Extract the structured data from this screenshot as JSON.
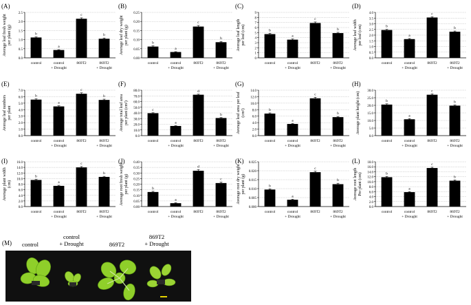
{
  "chart_data": [
    {
      "panel": "(A)",
      "type": "bar",
      "ylabel": [
        "Average leaf fresh weight",
        "per plant (g)"
      ],
      "ylim": [
        0,
        2.5
      ],
      "ticks": [
        "0.0",
        "0.5",
        "1.0",
        "1.5",
        "2.0",
        "2.5"
      ],
      "categories": [
        [
          "control"
        ],
        [
          "control",
          "+ Drought"
        ],
        [
          "869T2"
        ],
        [
          "869T2",
          "+ Drought"
        ]
      ],
      "values": [
        1.12,
        0.43,
        2.15,
        1.05
      ],
      "errors": [
        0.03,
        0.02,
        0.05,
        0.04
      ],
      "letters": [
        "b",
        "a",
        "c",
        "b"
      ]
    },
    {
      "panel": "(B)",
      "type": "bar",
      "ylabel": [
        "Average leaf dry weight",
        "per plant (g)"
      ],
      "ylim": [
        0,
        0.25
      ],
      "ticks": [
        "0.00",
        "0.05",
        "0.10",
        "0.15",
        "0.20",
        "0.25"
      ],
      "categories": [
        [
          "control"
        ],
        [
          "control",
          "+ Drought"
        ],
        [
          "869T2"
        ],
        [
          "869T2",
          "+ Drought"
        ]
      ],
      "values": [
        0.062,
        0.032,
        0.172,
        0.086
      ],
      "errors": [
        0.004,
        0.002,
        0.006,
        0.004
      ],
      "letters": [
        "b",
        "a",
        "c",
        "b"
      ]
    },
    {
      "panel": "(C)",
      "type": "bar",
      "ylabel": [
        "Average leaf length",
        "per leaf (cm)"
      ],
      "ylim": [
        0,
        9
      ],
      "ticks": [
        "0",
        "1",
        "2",
        "3",
        "4",
        "5",
        "6",
        "7",
        "8",
        "9"
      ],
      "categories": [
        [
          "control"
        ],
        [
          "control",
          "+ Drought"
        ],
        [
          "869T2"
        ],
        [
          "869T2",
          "+ Drought"
        ]
      ],
      "values": [
        4.7,
        3.6,
        6.9,
        4.9
      ],
      "errors": [
        0.15,
        0.15,
        0.2,
        0.15
      ],
      "letters": [
        "b",
        "a",
        "c",
        "b"
      ]
    },
    {
      "panel": "(D)",
      "type": "bar",
      "ylabel": [
        "Average leaf width",
        "per leaf (cm)"
      ],
      "ylim": [
        0,
        4.0
      ],
      "ticks": [
        "0.0",
        "0.5",
        "1.0",
        "1.5",
        "2.0",
        "2.5",
        "3.0",
        "3.5",
        "4.0"
      ],
      "categories": [
        [
          "control"
        ],
        [
          "control",
          "+ Drought"
        ],
        [
          "869T2"
        ],
        [
          "869T2",
          "+ Drought"
        ]
      ],
      "values": [
        2.45,
        1.65,
        3.55,
        2.3
      ],
      "errors": [
        0.06,
        0.05,
        0.07,
        0.06
      ],
      "letters": [
        "b",
        "a",
        "c",
        "b"
      ]
    },
    {
      "panel": "(E)",
      "type": "bar",
      "ylabel": [
        "Average leaf numbers",
        "per plant"
      ],
      "ylim": [
        0,
        7.0
      ],
      "ticks": [
        "0.0",
        "1.0",
        "2.0",
        "3.0",
        "4.0",
        "5.0",
        "6.0",
        "7.0"
      ],
      "categories": [
        [
          "control"
        ],
        [
          "control",
          "+ Drought"
        ],
        [
          "869T2"
        ],
        [
          "869T2",
          "+ Drought"
        ]
      ],
      "values": [
        5.55,
        4.5,
        6.45,
        5.5
      ],
      "errors": [
        0.12,
        0.1,
        0.15,
        0.12
      ],
      "letters": [
        "b",
        "a",
        "c",
        "b"
      ]
    },
    {
      "panel": "(F)",
      "type": "bar",
      "ylabel": [
        "Average total leaf area",
        "per plant (cm²)"
      ],
      "ylim": [
        0,
        80
      ],
      "ticks": [
        "0.0",
        "10.0",
        "20.0",
        "30.0",
        "40.0",
        "50.0",
        "60.0",
        "70.0",
        "80.0"
      ],
      "categories": [
        [
          "control"
        ],
        [
          "control",
          "+ Drought"
        ],
        [
          "869T2"
        ],
        [
          "869T2",
          "+ Drought"
        ]
      ],
      "values": [
        39.5,
        17.0,
        72.0,
        31.0
      ],
      "errors": [
        0.8,
        0.6,
        1.0,
        0.8
      ],
      "letters": [
        "c",
        "a",
        "d",
        "b"
      ]
    },
    {
      "panel": "(G)",
      "type": "bar",
      "ylabel": [
        "Average leaf area per leaf",
        "(cm²)"
      ],
      "ylim": [
        0,
        14
      ],
      "ticks": [
        "0.0",
        "2.0",
        "4.0",
        "6.0",
        "8.0",
        "10.0",
        "12.0",
        "14.0"
      ],
      "categories": [
        [
          "control"
        ],
        [
          "control",
          "+ Drought"
        ],
        [
          "869T2"
        ],
        [
          "869T2",
          "+ Drought"
        ]
      ],
      "values": [
        6.8,
        3.6,
        11.5,
        5.7
      ],
      "errors": [
        0.2,
        0.15,
        0.3,
        0.2
      ],
      "letters": [
        "b",
        "a",
        "c",
        "b"
      ]
    },
    {
      "panel": "(H)",
      "type": "bar",
      "ylabel": [
        "Average plant height (cm)"
      ],
      "ylim": [
        0,
        30
      ],
      "ticks": [
        "0.0",
        "5.0",
        "10.0",
        "15.0",
        "20.0",
        "25.0",
        "30.0"
      ],
      "categories": [
        [
          "control"
        ],
        [
          "control",
          "+ Drought"
        ],
        [
          "869T2"
        ],
        [
          "869T2",
          "+ Drought"
        ]
      ],
      "values": [
        20.5,
        10.8,
        27.0,
        19.8
      ],
      "errors": [
        0.5,
        0.4,
        0.6,
        0.5
      ],
      "letters": [
        "b",
        "a",
        "c",
        "b"
      ]
    },
    {
      "panel": "(I)",
      "type": "bar",
      "ylabel": [
        "Average plant width",
        "(cm)"
      ],
      "ylim": [
        0,
        16
      ],
      "ticks": [
        "0.0",
        "2.0",
        "4.0",
        "6.0",
        "8.0",
        "10.0",
        "12.0",
        "14.0",
        "16.0"
      ],
      "categories": [
        [
          "control"
        ],
        [
          "control",
          "+ Drought"
        ],
        [
          "869T2"
        ],
        [
          "869T2",
          "+ Drought"
        ]
      ],
      "values": [
        9.5,
        7.4,
        14.0,
        10.6
      ],
      "errors": [
        0.2,
        0.2,
        0.3,
        0.2
      ],
      "letters": [
        "b",
        "a",
        "c",
        "b"
      ]
    },
    {
      "panel": "(J)",
      "type": "bar",
      "ylabel": [
        "Average root fresh weight",
        "per plant (g)"
      ],
      "ylim": [
        0,
        0.4
      ],
      "ticks": [
        "0.00",
        "0.05",
        "0.10",
        "0.15",
        "0.20",
        "0.25",
        "0.30",
        "0.35",
        "0.40"
      ],
      "categories": [
        [
          "control"
        ],
        [
          "control",
          "+ Drought"
        ],
        [
          "869T2"
        ],
        [
          "869T2",
          "+ Drought"
        ]
      ],
      "values": [
        0.13,
        0.03,
        0.32,
        0.21
      ],
      "errors": [
        0.006,
        0.004,
        0.01,
        0.008
      ],
      "letters": [
        "b",
        "a",
        "d",
        "c"
      ]
    },
    {
      "panel": "(K)",
      "type": "bar",
      "ylabel": [
        "Average root dry weight",
        "per plant (g)"
      ],
      "ylim": [
        0,
        0.025
      ],
      "ticks": [
        "0.000",
        "0.005",
        "0.010",
        "0.015",
        "0.020",
        "0.025"
      ],
      "categories": [
        [
          "control"
        ],
        [
          "control",
          "+ Drought"
        ],
        [
          "869T2"
        ],
        [
          "869T2",
          "+ Drought"
        ]
      ],
      "values": [
        0.0095,
        0.0038,
        0.0192,
        0.0125
      ],
      "errors": [
        0.0004,
        0.0003,
        0.0005,
        0.0005
      ],
      "letters": [
        "b",
        "a",
        "c",
        "b"
      ]
    },
    {
      "panel": "(L)",
      "type": "bar",
      "ylabel": [
        "Average root length",
        "Per plant (cm)"
      ],
      "ylim": [
        0,
        18
      ],
      "ticks": [
        "0.0",
        "2.0",
        "4.0",
        "6.0",
        "8.0",
        "10.0",
        "12.0",
        "14.0",
        "16.0",
        "18.0"
      ],
      "categories": [
        [
          "control"
        ],
        [
          "control",
          "+ Drought"
        ],
        [
          "869T2"
        ],
        [
          "869T2",
          "+ Drought"
        ]
      ],
      "values": [
        11.8,
        5.8,
        15.5,
        10.4
      ],
      "errors": [
        0.3,
        0.2,
        0.3,
        0.3
      ],
      "letters": [
        "b",
        "a",
        "c",
        "b"
      ]
    }
  ],
  "photo": {
    "panel_label": "(M)",
    "labels": [
      "control",
      "control\n+ Drought",
      "869T2",
      "869T2\n+ Drought"
    ],
    "background_color": "#101010",
    "plant_color": "#8fcf2a",
    "scale_bar_color": "#e6d400"
  }
}
